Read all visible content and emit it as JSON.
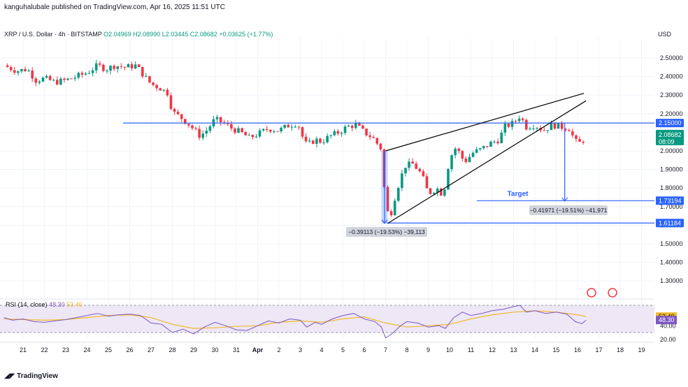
{
  "header": {
    "published": "kanguhalubale published on TradingView.com, Apr 16, 2025 11:51 UTC"
  },
  "legend": {
    "symbol": "XRP / U.S. Dollar · 4h · BITSTAMP",
    "open": "O2.04969",
    "high": "H2.08990",
    "low": "L2.03445",
    "close": "C2.08682",
    "change": "+0.03625 (+1.77%)"
  },
  "currency": "USD",
  "footer": {
    "brand": "TradingView"
  },
  "colors": {
    "up": "#089981",
    "down": "#f23645",
    "blue": "#2962ff",
    "rsi_line": "#7e57c2",
    "rsi_ma": "#f2b92b",
    "rsi_bg": "#ede7f6"
  },
  "chart_data": [
    {
      "type": "candlestick",
      "ylim": [
        1.2,
        2.6
      ],
      "y_ticks": [
        "2.50000",
        "2.40000",
        "2.30000",
        "2.20000",
        "2.10000",
        "2.00000",
        "1.90000",
        "1.80000",
        "1.70000",
        "1.60000",
        "1.50000",
        "1.40000",
        "1.30000"
      ],
      "y_tick_values": [
        2.5,
        2.4,
        2.3,
        2.2,
        2.1,
        2.0,
        1.9,
        1.8,
        1.7,
        1.6,
        1.5,
        1.4,
        1.3
      ],
      "x_ticks": [
        "21",
        "22",
        "23",
        "24",
        "25",
        "26",
        "27",
        "28",
        "29",
        "30",
        "31",
        "Apr",
        "2",
        "3",
        "4",
        "5",
        "6",
        "7",
        "8",
        "9",
        "10",
        "11",
        "12",
        "13",
        "14",
        "15",
        "16",
        "17",
        "18",
        "19"
      ],
      "x_tick_days": [
        0,
        1,
        2,
        3,
        4,
        5,
        6,
        7,
        8,
        9,
        10,
        11,
        12,
        13,
        14,
        15,
        16,
        17,
        18,
        19,
        20,
        21,
        22,
        23,
        24,
        25,
        26,
        27,
        28,
        29
      ],
      "x_axis_note": "x values are days from Mar 21, 2025",
      "close_path": [
        [
          -0.9,
          2.46
        ],
        [
          -0.3,
          2.43
        ],
        [
          0.2,
          2.44
        ],
        [
          0.6,
          2.38
        ],
        [
          1.0,
          2.39
        ],
        [
          1.5,
          2.37
        ],
        [
          2.0,
          2.38
        ],
        [
          2.5,
          2.4
        ],
        [
          3.0,
          2.42
        ],
        [
          3.5,
          2.46
        ],
        [
          3.9,
          2.44
        ],
        [
          4.3,
          2.46
        ],
        [
          4.8,
          2.45
        ],
        [
          5.3,
          2.46
        ],
        [
          5.7,
          2.4
        ],
        [
          6.0,
          2.36
        ],
        [
          6.4,
          2.34
        ],
        [
          6.8,
          2.31
        ],
        [
          7.0,
          2.21
        ],
        [
          7.4,
          2.18
        ],
        [
          7.8,
          2.14
        ],
        [
          8.3,
          2.08
        ],
        [
          8.6,
          2.11
        ],
        [
          9.0,
          2.17
        ],
        [
          9.4,
          2.15
        ],
        [
          9.8,
          2.12
        ],
        [
          10.2,
          2.1
        ],
        [
          10.6,
          2.07
        ],
        [
          11.0,
          2.09
        ],
        [
          11.5,
          2.12
        ],
        [
          12.0,
          2.11
        ],
        [
          12.5,
          2.14
        ],
        [
          12.9,
          2.15
        ],
        [
          13.0,
          2.1
        ],
        [
          13.3,
          2.03
        ],
        [
          13.7,
          2.06
        ],
        [
          14.0,
          2.05
        ],
        [
          14.4,
          2.08
        ],
        [
          14.8,
          2.1
        ],
        [
          15.2,
          2.13
        ],
        [
          15.6,
          2.14
        ],
        [
          16.0,
          2.1
        ],
        [
          16.4,
          2.07
        ],
        [
          16.8,
          2.01
        ],
        [
          17.0,
          1.7
        ],
        [
          17.2,
          1.64
        ],
        [
          17.5,
          1.78
        ],
        [
          17.9,
          1.92
        ],
        [
          18.3,
          1.93
        ],
        [
          18.7,
          1.87
        ],
        [
          19.0,
          1.77
        ],
        [
          19.4,
          1.8
        ],
        [
          19.7,
          1.76
        ],
        [
          20.0,
          1.96
        ],
        [
          20.3,
          2.02
        ],
        [
          20.7,
          1.94
        ],
        [
          21.1,
          1.99
        ],
        [
          21.5,
          2.01
        ],
        [
          21.9,
          2.04
        ],
        [
          22.3,
          2.06
        ],
        [
          22.6,
          2.13
        ],
        [
          23.0,
          2.15
        ],
        [
          23.3,
          2.19
        ],
        [
          23.6,
          2.13
        ],
        [
          24.0,
          2.14
        ],
        [
          24.4,
          2.11
        ],
        [
          24.8,
          2.14
        ],
        [
          25.2,
          2.13
        ],
        [
          25.6,
          2.12
        ],
        [
          25.9,
          2.05
        ],
        [
          26.2,
          2.04
        ],
        [
          26.4,
          2.09
        ]
      ],
      "horizontal_levels": [
        {
          "value": 2.15,
          "label": "2.15000",
          "style": "resistance"
        },
        {
          "value": 1.73194,
          "label": "1.73194",
          "style": "target"
        },
        {
          "value": 1.61184,
          "label": "1.61184",
          "style": "low"
        }
      ],
      "last_price": {
        "value": 2.08682,
        "label": "2.08682",
        "countdown": "08:09"
      },
      "rising_wedge": {
        "upper": [
          [
            17.0,
            2.0
          ],
          [
            26.3,
            2.31
          ]
        ],
        "lower": [
          [
            17.1,
            1.61
          ],
          [
            26.4,
            2.27
          ]
        ]
      },
      "measure_boxes": [
        {
          "x_start": 16.8,
          "x_end": 17.1,
          "y_start": 2.0,
          "y_end": 1.61,
          "label": "−0.39113 (−19.53%) −39,113"
        },
        {
          "x": 25.4,
          "y_start": 2.15,
          "y_end": 1.73,
          "label": "−0.41971 (−19.51%) −41,971"
        }
      ],
      "annotations": [
        {
          "text": "Target",
          "x": 23.2,
          "y": 1.75
        }
      ]
    },
    {
      "type": "line",
      "title": "RSI (14, close)",
      "series": [
        {
          "name": "48.30",
          "color": "#7e57c2",
          "last": 48.3
        },
        {
          "name": "53.40",
          "color": "#f2b92b",
          "last": 53.4
        }
      ],
      "ylim": [
        10,
        90
      ],
      "band": [
        30,
        70
      ],
      "y_ticks": [
        "40.00",
        "20.00"
      ],
      "y_tick_values": [
        40,
        20
      ],
      "rsi_values": [
        [
          -0.9,
          52
        ],
        [
          -0.5,
          48
        ],
        [
          0,
          50
        ],
        [
          0.5,
          46
        ],
        [
          1.0,
          45
        ],
        [
          1.5,
          47
        ],
        [
          2.0,
          49
        ],
        [
          2.5,
          52
        ],
        [
          3.0,
          55
        ],
        [
          3.5,
          58
        ],
        [
          4.0,
          54
        ],
        [
          4.5,
          56
        ],
        [
          5.0,
          57
        ],
        [
          5.5,
          55
        ],
        [
          6.0,
          44
        ],
        [
          6.5,
          42
        ],
        [
          7.0,
          30
        ],
        [
          7.5,
          35
        ],
        [
          8.0,
          28
        ],
        [
          8.5,
          38
        ],
        [
          9.0,
          45
        ],
        [
          9.5,
          40
        ],
        [
          10.0,
          34
        ],
        [
          10.5,
          33
        ],
        [
          11.0,
          40
        ],
        [
          11.5,
          47
        ],
        [
          12.0,
          44
        ],
        [
          12.5,
          50
        ],
        [
          13.0,
          48
        ],
        [
          13.3,
          38
        ],
        [
          13.7,
          45
        ],
        [
          14.0,
          42
        ],
        [
          14.5,
          50
        ],
        [
          15.0,
          55
        ],
        [
          15.5,
          58
        ],
        [
          16.0,
          50
        ],
        [
          16.5,
          46
        ],
        [
          16.8,
          38
        ],
        [
          17.0,
          22
        ],
        [
          17.3,
          28
        ],
        [
          17.7,
          40
        ],
        [
          18.0,
          46
        ],
        [
          18.5,
          44
        ],
        [
          19.0,
          38
        ],
        [
          19.5,
          40
        ],
        [
          19.8,
          36
        ],
        [
          20.2,
          52
        ],
        [
          20.6,
          60
        ],
        [
          21.0,
          55
        ],
        [
          21.5,
          58
        ],
        [
          22.0,
          62
        ],
        [
          22.5,
          64
        ],
        [
          23.0,
          68
        ],
        [
          23.3,
          70
        ],
        [
          23.6,
          60
        ],
        [
          24.0,
          62
        ],
        [
          24.5,
          58
        ],
        [
          25.0,
          60
        ],
        [
          25.5,
          57
        ],
        [
          25.9,
          46
        ],
        [
          26.2,
          43
        ],
        [
          26.4,
          48.3
        ]
      ],
      "ma_values": [
        [
          -0.9,
          50
        ],
        [
          0,
          49
        ],
        [
          1.0,
          48
        ],
        [
          2.0,
          49
        ],
        [
          3.0,
          52
        ],
        [
          4.0,
          55
        ],
        [
          5.0,
          56
        ],
        [
          6.0,
          52
        ],
        [
          7.0,
          42
        ],
        [
          8.0,
          36
        ],
        [
          9.0,
          37
        ],
        [
          10.0,
          39
        ],
        [
          11.0,
          40
        ],
        [
          12.0,
          45
        ],
        [
          13.0,
          47
        ],
        [
          14.0,
          45
        ],
        [
          15.0,
          50
        ],
        [
          16.0,
          53
        ],
        [
          17.0,
          44
        ],
        [
          18.0,
          38
        ],
        [
          19.0,
          40
        ],
        [
          20.0,
          42
        ],
        [
          21.0,
          50
        ],
        [
          22.0,
          56
        ],
        [
          23.0,
          60
        ],
        [
          24.0,
          62
        ],
        [
          25.0,
          60
        ],
        [
          26.0,
          56
        ],
        [
          26.4,
          53.4
        ]
      ]
    }
  ]
}
